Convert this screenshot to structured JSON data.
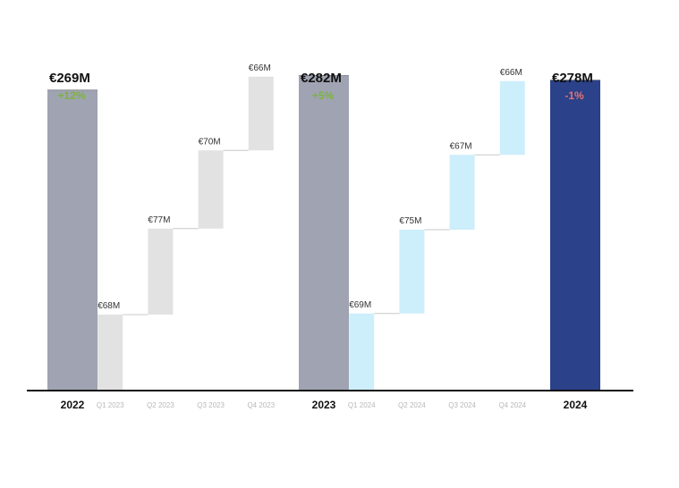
{
  "chart_data": {
    "type": "bar",
    "subtype": "waterfall",
    "title": "",
    "xlabel": "",
    "ylabel": "",
    "ylim": [
      0,
      300
    ],
    "grid": false,
    "legend": "none",
    "categories": [
      "2022",
      "Q1 2023",
      "Q2 2023",
      "Q3 2023",
      "Q4 2023",
      "2023",
      "Q1 2024",
      "Q2 2024",
      "Q3 2024",
      "Q4 2024",
      "2024"
    ],
    "bars": [
      {
        "category": "2022",
        "kind": "total",
        "value": 269,
        "label": "€269M",
        "change": "+12%",
        "change_color": "#7cb342",
        "color": "#a0a3b1"
      },
      {
        "category": "Q1 2023",
        "kind": "step",
        "value": 68,
        "label": "€68M",
        "color": "#e2e2e2"
      },
      {
        "category": "Q2 2023",
        "kind": "step",
        "value": 77,
        "label": "€77M",
        "color": "#e2e2e2"
      },
      {
        "category": "Q3 2023",
        "kind": "step",
        "value": 70,
        "label": "€70M",
        "color": "#e2e2e2"
      },
      {
        "category": "Q4 2023",
        "kind": "step",
        "value": 66,
        "label": "€66M",
        "color": "#e2e2e2"
      },
      {
        "category": "2023",
        "kind": "total",
        "value": 282,
        "label": "€282M",
        "change": "+5%",
        "change_color": "#7cb342",
        "color": "#a0a3b1"
      },
      {
        "category": "Q1 2024",
        "kind": "step",
        "value": 69,
        "label": "€69M",
        "color": "#cdeefb"
      },
      {
        "category": "Q2 2024",
        "kind": "step",
        "value": 75,
        "label": "€75M",
        "color": "#cdeefb"
      },
      {
        "category": "Q3 2024",
        "kind": "step",
        "value": 67,
        "label": "€67M",
        "color": "#cdeefb"
      },
      {
        "category": "Q4 2024",
        "kind": "step",
        "value": 66,
        "label": "€66M",
        "color": "#cdeefb"
      },
      {
        "category": "2024",
        "kind": "total",
        "value": 278,
        "label": "€278M",
        "change": "-1%",
        "change_color": "#e57373",
        "color": "#2b4189"
      }
    ]
  }
}
